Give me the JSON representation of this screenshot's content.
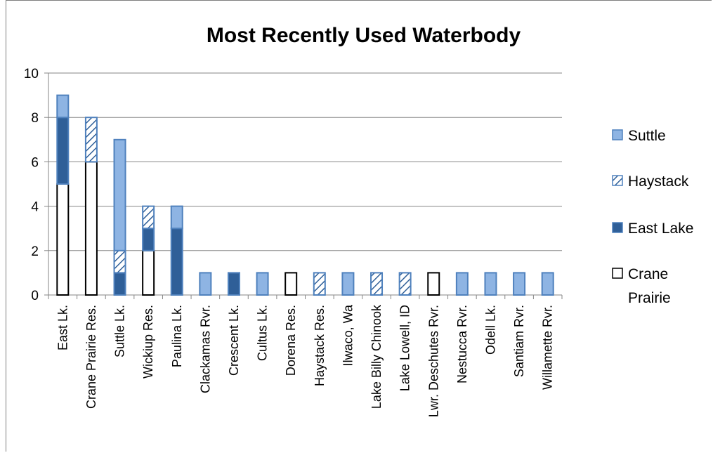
{
  "chart_data": {
    "type": "bar",
    "stacked": true,
    "title": "Most Recently Used Waterbody",
    "xlabel": "",
    "ylabel": "",
    "ylim": [
      0,
      10
    ],
    "yticks": [
      0,
      2,
      4,
      6,
      8,
      10
    ],
    "grid": true,
    "legend_position": "right",
    "categories": [
      "East Lk.",
      "Crane Prairie Res.",
      "Suttle Lk.",
      "Wickiup Res.",
      "Paulina Lk.",
      "Clackamas Rvr.",
      "Crescent  Lk.",
      "Cultus Lk.",
      "Dorena Res.",
      "Haystack Res.",
      "Ilwaco, Wa",
      "Lake Billy Chinook",
      "Lake Lowell, ID",
      "Lwr. Deschutes Rvr.",
      "Nestucca Rvr.",
      "Odell Lk.",
      "Santiam Rvr.",
      "Willamette Rvr."
    ],
    "series": [
      {
        "name": "Crane Prairie",
        "style": "white",
        "values": [
          5,
          6,
          0,
          2,
          0,
          0,
          0,
          0,
          1,
          0,
          0,
          0,
          0,
          1,
          0,
          0,
          0,
          0
        ]
      },
      {
        "name": "East Lake",
        "style": "dark",
        "values": [
          3,
          0,
          1,
          1,
          3,
          0,
          1,
          0,
          0,
          0,
          0,
          0,
          0,
          0,
          0,
          0,
          0,
          0
        ]
      },
      {
        "name": "Haystack",
        "style": "hatch",
        "values": [
          0,
          2,
          1,
          1,
          0,
          0,
          0,
          0,
          0,
          1,
          0,
          1,
          1,
          0,
          0,
          0,
          0,
          0
        ]
      },
      {
        "name": "Suttle",
        "style": "light",
        "values": [
          1,
          0,
          5,
          0,
          1,
          1,
          0,
          1,
          0,
          0,
          1,
          0,
          0,
          0,
          1,
          1,
          1,
          1
        ]
      }
    ],
    "legend_order": [
      "Suttle",
      "Haystack",
      "East Lake",
      "Crane Prairie"
    ]
  },
  "colors": {
    "light_fill": "#8eb4e3",
    "light_stroke": "#4f81bd",
    "dark_fill": "#2f5f98",
    "dark_stroke": "#4f81bd",
    "hatch_line": "#2f5f98",
    "white_fill": "#ffffff",
    "white_stroke": "#000000",
    "grid": "#868686"
  }
}
